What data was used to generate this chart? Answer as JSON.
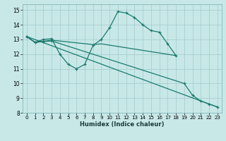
{
  "xlabel": "Humidex (Indice chaleur)",
  "bg_color": "#c8e8e8",
  "grid_color": "#a8cece",
  "line_color": "#1a7a6e",
  "xlim": [
    -0.5,
    23.5
  ],
  "ylim": [
    8,
    15.4
  ],
  "xticks": [
    0,
    1,
    2,
    3,
    4,
    5,
    6,
    7,
    8,
    9,
    10,
    11,
    12,
    13,
    14,
    15,
    16,
    17,
    18,
    19,
    20,
    21,
    22,
    23
  ],
  "yticks": [
    8,
    9,
    10,
    11,
    12,
    13,
    14,
    15
  ],
  "curve1_x": [
    0,
    1,
    2,
    3,
    4,
    5,
    6,
    7,
    8,
    9,
    10,
    11,
    12,
    13,
    14,
    15,
    16,
    17,
    18
  ],
  "curve1_y": [
    13.2,
    12.8,
    13.0,
    13.05,
    12.0,
    11.3,
    11.0,
    11.3,
    12.6,
    13.0,
    13.8,
    14.9,
    14.8,
    14.5,
    14.0,
    13.6,
    13.5,
    12.7,
    11.9
  ],
  "curve2_x": [
    0,
    1,
    3,
    8,
    9,
    18
  ],
  "curve2_y": [
    13.2,
    12.8,
    12.95,
    12.65,
    12.7,
    11.9
  ],
  "curve3_x": [
    0,
    1,
    2,
    3,
    19,
    20,
    21,
    22,
    23
  ],
  "curve3_y": [
    13.2,
    12.8,
    12.85,
    12.9,
    10.0,
    9.2,
    8.8,
    8.6,
    8.4
  ],
  "curve4_x": [
    0,
    22,
    23
  ],
  "curve4_y": [
    13.2,
    8.6,
    8.4
  ]
}
